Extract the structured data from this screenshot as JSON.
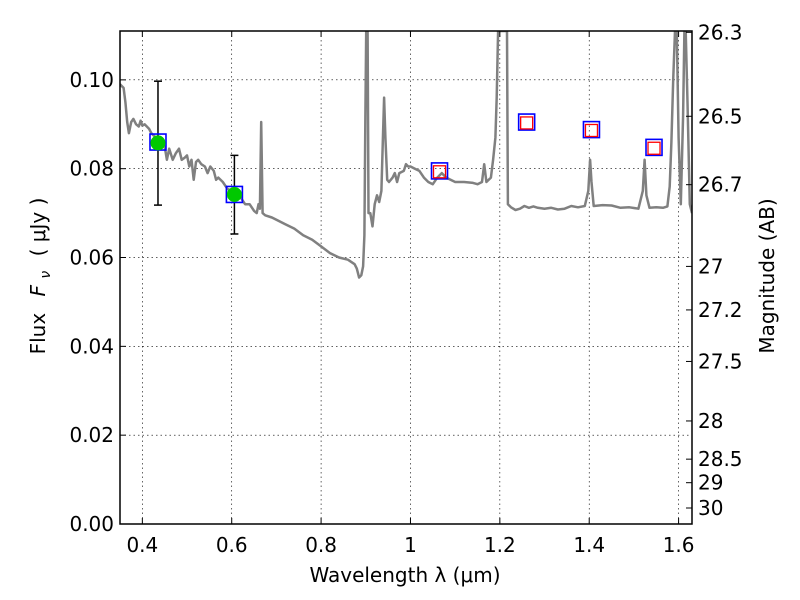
{
  "chart_data": {
    "type": "scatter",
    "xlabel": "Wavelength  λ (μm)",
    "ylabel_text": "Flux",
    "ylabel_symbol": "F",
    "ylabel_subscript": "ν",
    "ylabel_unit": "( μJy )",
    "y2label": "Magnitude (AB)",
    "xlim": [
      0.35,
      1.63
    ],
    "ylim": [
      0.0,
      0.111
    ],
    "grid": true,
    "xticks": [
      0.4,
      0.6,
      0.8,
      1.0,
      1.2,
      1.4,
      1.6
    ],
    "xtick_labels": [
      "0.4",
      "0.6",
      "0.8",
      "1",
      "1.2",
      "1.4",
      "1.6"
    ],
    "yticks": [
      0.0,
      0.02,
      0.04,
      0.06,
      0.08,
      0.1
    ],
    "ytick_labels": [
      "0.00",
      "0.02",
      "0.04",
      "0.06",
      "0.08",
      "0.10"
    ],
    "mag_ticks": [
      {
        "label": "26.3",
        "flux": 0.1107
      },
      {
        "label": "26.5",
        "flux": 0.0918
      },
      {
        "label": "26.7",
        "flux": 0.0764
      },
      {
        "label": "27",
        "flux": 0.058
      },
      {
        "label": "27.2",
        "flux": 0.0482
      },
      {
        "label": "27.5",
        "flux": 0.0366
      },
      {
        "label": "28",
        "flux": 0.0232
      },
      {
        "label": "28.5",
        "flux": 0.0146
      },
      {
        "label": "29",
        "flux": 0.0093
      },
      {
        "label": "30",
        "flux": 0.0036
      }
    ],
    "series": [
      {
        "kind": "spectrum",
        "color": "#808080",
        "points": [
          [
            0.35,
            0.099
          ],
          [
            0.358,
            0.0982
          ],
          [
            0.362,
            0.095
          ],
          [
            0.366,
            0.0905
          ],
          [
            0.37,
            0.088
          ],
          [
            0.375,
            0.0905
          ],
          [
            0.38,
            0.0912
          ],
          [
            0.386,
            0.09
          ],
          [
            0.392,
            0.0895
          ],
          [
            0.396,
            0.0908
          ],
          [
            0.4,
            0.0897
          ],
          [
            0.405,
            0.09
          ],
          [
            0.41,
            0.0895
          ],
          [
            0.415,
            0.089
          ],
          [
            0.42,
            0.088
          ],
          [
            0.43,
            0.087
          ],
          [
            0.44,
            0.086
          ],
          [
            0.45,
            0.085
          ],
          [
            0.455,
            0.082
          ],
          [
            0.46,
            0.0845
          ],
          [
            0.468,
            0.082
          ],
          [
            0.475,
            0.0835
          ],
          [
            0.482,
            0.0845
          ],
          [
            0.488,
            0.082
          ],
          [
            0.495,
            0.0825
          ],
          [
            0.5,
            0.083
          ],
          [
            0.505,
            0.0805
          ],
          [
            0.51,
            0.082
          ],
          [
            0.515,
            0.0775
          ],
          [
            0.52,
            0.0815
          ],
          [
            0.525,
            0.082
          ],
          [
            0.532,
            0.081
          ],
          [
            0.54,
            0.0805
          ],
          [
            0.546,
            0.079
          ],
          [
            0.552,
            0.0805
          ],
          [
            0.56,
            0.0795
          ],
          [
            0.565,
            0.0775
          ],
          [
            0.57,
            0.078
          ],
          [
            0.58,
            0.077
          ],
          [
            0.59,
            0.0755
          ],
          [
            0.6,
            0.075
          ],
          [
            0.61,
            0.074
          ],
          [
            0.62,
            0.0735
          ],
          [
            0.63,
            0.072
          ],
          [
            0.64,
            0.072
          ],
          [
            0.65,
            0.0705
          ],
          [
            0.656,
            0.07
          ],
          [
            0.66,
            0.072
          ],
          [
            0.663,
            0.071
          ],
          [
            0.666,
            0.0905
          ],
          [
            0.669,
            0.07
          ],
          [
            0.675,
            0.0695
          ],
          [
            0.69,
            0.069
          ],
          [
            0.7,
            0.0685
          ],
          [
            0.72,
            0.0675
          ],
          [
            0.74,
            0.0665
          ],
          [
            0.76,
            0.065
          ],
          [
            0.78,
            0.064
          ],
          [
            0.8,
            0.0625
          ],
          [
            0.82,
            0.061
          ],
          [
            0.84,
            0.06
          ],
          [
            0.86,
            0.0595
          ],
          [
            0.875,
            0.0585
          ],
          [
            0.88,
            0.0575
          ],
          [
            0.885,
            0.0555
          ],
          [
            0.89,
            0.056
          ],
          [
            0.894,
            0.058
          ],
          [
            0.897,
            0.065
          ],
          [
            0.899,
            0.09
          ],
          [
            0.901,
            0.112
          ],
          [
            0.904,
            0.112
          ],
          [
            0.906,
            0.07
          ],
          [
            0.91,
            0.07
          ],
          [
            0.915,
            0.067
          ],
          [
            0.92,
            0.072
          ],
          [
            0.925,
            0.074
          ],
          [
            0.93,
            0.0725
          ],
          [
            0.935,
            0.075
          ],
          [
            0.938,
            0.086
          ],
          [
            0.941,
            0.096
          ],
          [
            0.944,
            0.087
          ],
          [
            0.948,
            0.0775
          ],
          [
            0.952,
            0.077
          ],
          [
            0.96,
            0.078
          ],
          [
            0.965,
            0.079
          ],
          [
            0.97,
            0.077
          ],
          [
            0.975,
            0.079
          ],
          [
            0.985,
            0.0795
          ],
          [
            0.99,
            0.081
          ],
          [
            0.995,
            0.0805
          ],
          [
            1.0,
            0.0805
          ],
          [
            1.01,
            0.08
          ],
          [
            1.02,
            0.0795
          ],
          [
            1.03,
            0.078
          ],
          [
            1.04,
            0.077
          ],
          [
            1.05,
            0.0765
          ],
          [
            1.06,
            0.078
          ],
          [
            1.07,
            0.079
          ],
          [
            1.08,
            0.078
          ],
          [
            1.1,
            0.077
          ],
          [
            1.12,
            0.077
          ],
          [
            1.14,
            0.0768
          ],
          [
            1.15,
            0.0765
          ],
          [
            1.16,
            0.077
          ],
          [
            1.165,
            0.081
          ],
          [
            1.17,
            0.077
          ],
          [
            1.18,
            0.078
          ],
          [
            1.185,
            0.082
          ],
          [
            1.19,
            0.087
          ],
          [
            1.193,
            0.096
          ],
          [
            1.196,
            0.112
          ],
          [
            1.2,
            0.112
          ],
          [
            1.21,
            0.112
          ],
          [
            1.216,
            0.112
          ],
          [
            1.218,
            0.072
          ],
          [
            1.225,
            0.0713
          ],
          [
            1.235,
            0.0707
          ],
          [
            1.245,
            0.071
          ],
          [
            1.255,
            0.0716
          ],
          [
            1.265,
            0.0712
          ],
          [
            1.275,
            0.0715
          ],
          [
            1.285,
            0.0712
          ],
          [
            1.3,
            0.071
          ],
          [
            1.315,
            0.0712
          ],
          [
            1.33,
            0.0708
          ],
          [
            1.345,
            0.071
          ],
          [
            1.36,
            0.0716
          ],
          [
            1.375,
            0.0713
          ],
          [
            1.39,
            0.0716
          ],
          [
            1.398,
            0.075
          ],
          [
            1.402,
            0.082
          ],
          [
            1.405,
            0.077
          ],
          [
            1.41,
            0.0716
          ],
          [
            1.43,
            0.0718
          ],
          [
            1.45,
            0.0717
          ],
          [
            1.47,
            0.0712
          ],
          [
            1.49,
            0.0713
          ],
          [
            1.51,
            0.071
          ],
          [
            1.52,
            0.075
          ],
          [
            1.524,
            0.082
          ],
          [
            1.528,
            0.074
          ],
          [
            1.535,
            0.0712
          ],
          [
            1.55,
            0.0713
          ],
          [
            1.565,
            0.0712
          ],
          [
            1.575,
            0.0715
          ],
          [
            1.58,
            0.076
          ],
          [
            1.584,
            0.086
          ],
          [
            1.588,
            0.1
          ],
          [
            1.592,
            0.112
          ],
          [
            1.596,
            0.112
          ],
          [
            1.6,
            0.087
          ],
          [
            1.605,
            0.072
          ],
          [
            1.61,
            0.092
          ],
          [
            1.613,
            0.112
          ],
          [
            1.616,
            0.112
          ],
          [
            1.62,
            0.095
          ],
          [
            1.625,
            0.072
          ],
          [
            1.63,
            0.07
          ]
        ]
      },
      {
        "kind": "model_photometry",
        "marker": "square",
        "color": "#0000ff",
        "points": [
          [
            0.435,
            0.086
          ],
          [
            0.606,
            0.0742
          ],
          [
            1.065,
            0.0795
          ],
          [
            1.26,
            0.0905
          ],
          [
            1.405,
            0.0888
          ],
          [
            1.545,
            0.0848
          ]
        ]
      },
      {
        "kind": "observed_photometry",
        "marker": "square-open",
        "color": "#ff0000",
        "points": [
          [
            1.065,
            0.0793
          ],
          [
            1.26,
            0.0903
          ],
          [
            1.405,
            0.0886
          ],
          [
            1.545,
            0.0846
          ]
        ]
      },
      {
        "kind": "observed_detections",
        "marker": "circle",
        "color": "#00c800",
        "points": [
          {
            "x": 0.435,
            "y": 0.0858,
            "ylow": 0.0718,
            "yhigh": 0.0997
          },
          {
            "x": 0.606,
            "y": 0.0742,
            "ylow": 0.0653,
            "yhigh": 0.083
          }
        ]
      }
    ]
  }
}
